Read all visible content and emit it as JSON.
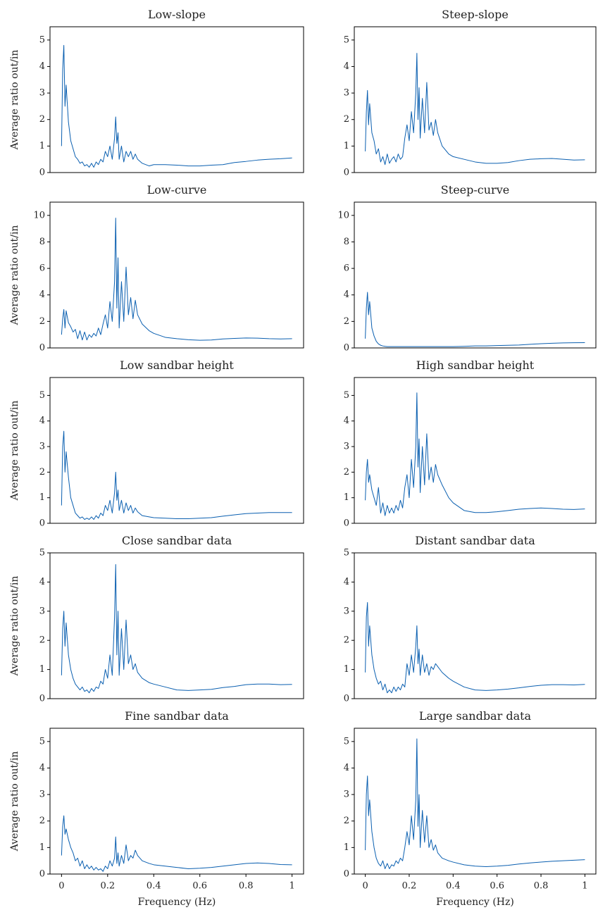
{
  "chart_data": [
    {
      "type": "line",
      "title": "Low-slope",
      "ylabel": "Average ratio out/in",
      "color": "#0a5fb0",
      "x": [
        0,
        0.005,
        0.01,
        0.015,
        0.02,
        0.03,
        0.04,
        0.05,
        0.06,
        0.07,
        0.08,
        0.09,
        0.1,
        0.11,
        0.12,
        0.13,
        0.14,
        0.15,
        0.16,
        0.17,
        0.18,
        0.19,
        0.2,
        0.21,
        0.22,
        0.23,
        0.235,
        0.24,
        0.245,
        0.25,
        0.26,
        0.27,
        0.28,
        0.29,
        0.3,
        0.31,
        0.32,
        0.33,
        0.35,
        0.38,
        0.4,
        0.45,
        0.5,
        0.55,
        0.6,
        0.65,
        0.7,
        0.75,
        0.8,
        0.85,
        0.9,
        0.95,
        1.0
      ],
      "values": [
        1.0,
        3.9,
        4.8,
        2.5,
        3.3,
        1.9,
        1.2,
        0.9,
        0.6,
        0.5,
        0.35,
        0.4,
        0.25,
        0.3,
        0.2,
        0.35,
        0.2,
        0.4,
        0.3,
        0.5,
        0.4,
        0.8,
        0.6,
        1.0,
        0.5,
        1.3,
        2.1,
        1.1,
        1.5,
        0.5,
        1.0,
        0.4,
        0.8,
        0.6,
        0.8,
        0.5,
        0.7,
        0.5,
        0.35,
        0.25,
        0.3,
        0.3,
        0.28,
        0.25,
        0.25,
        0.28,
        0.3,
        0.38,
        0.42,
        0.47,
        0.5,
        0.52,
        0.55
      ],
      "xlim": [
        -0.05,
        1.05
      ],
      "ylim": [
        0,
        5.5
      ],
      "yticks": [
        0,
        1,
        2,
        3,
        4,
        5
      ]
    },
    {
      "type": "line",
      "title": "Steep-slope",
      "color": "#0a5fb0",
      "x": [
        0,
        0.005,
        0.01,
        0.015,
        0.02,
        0.03,
        0.04,
        0.05,
        0.06,
        0.07,
        0.08,
        0.09,
        0.1,
        0.11,
        0.12,
        0.13,
        0.14,
        0.15,
        0.16,
        0.17,
        0.18,
        0.19,
        0.2,
        0.21,
        0.22,
        0.23,
        0.235,
        0.24,
        0.245,
        0.25,
        0.26,
        0.27,
        0.28,
        0.29,
        0.3,
        0.31,
        0.32,
        0.33,
        0.35,
        0.38,
        0.4,
        0.45,
        0.5,
        0.55,
        0.6,
        0.65,
        0.7,
        0.75,
        0.8,
        0.85,
        0.9,
        0.95,
        1.0
      ],
      "values": [
        0.8,
        2.3,
        3.1,
        1.8,
        2.6,
        1.5,
        1.2,
        0.7,
        0.9,
        0.4,
        0.6,
        0.3,
        0.7,
        0.35,
        0.5,
        0.6,
        0.4,
        0.7,
        0.5,
        0.6,
        1.3,
        1.8,
        1.2,
        2.3,
        1.5,
        3.0,
        4.5,
        2.0,
        3.2,
        1.3,
        2.8,
        1.5,
        3.4,
        1.6,
        1.9,
        1.4,
        2.0,
        1.5,
        1.0,
        0.7,
        0.6,
        0.5,
        0.4,
        0.35,
        0.35,
        0.38,
        0.45,
        0.5,
        0.52,
        0.53,
        0.5,
        0.47,
        0.48
      ],
      "xlim": [
        -0.05,
        1.05
      ],
      "ylim": [
        0,
        5.5
      ],
      "yticks": [
        0,
        1,
        2,
        3,
        4,
        5
      ]
    },
    {
      "type": "line",
      "title": "Low-curve",
      "ylabel": "Average ratio out/in",
      "color": "#0a5fb0",
      "x": [
        0,
        0.005,
        0.01,
        0.015,
        0.02,
        0.03,
        0.04,
        0.05,
        0.06,
        0.07,
        0.08,
        0.09,
        0.1,
        0.11,
        0.12,
        0.13,
        0.14,
        0.15,
        0.16,
        0.17,
        0.18,
        0.19,
        0.2,
        0.21,
        0.22,
        0.23,
        0.235,
        0.24,
        0.245,
        0.25,
        0.26,
        0.27,
        0.28,
        0.29,
        0.3,
        0.31,
        0.32,
        0.33,
        0.35,
        0.38,
        0.4,
        0.45,
        0.5,
        0.55,
        0.6,
        0.65,
        0.7,
        0.75,
        0.8,
        0.85,
        0.9,
        0.95,
        1.0
      ],
      "values": [
        1.0,
        2.2,
        2.9,
        1.5,
        2.8,
        1.9,
        1.6,
        1.2,
        1.4,
        0.7,
        1.3,
        0.6,
        1.2,
        0.6,
        1.0,
        0.8,
        1.1,
        0.9,
        1.5,
        1.0,
        1.8,
        2.5,
        1.5,
        3.5,
        2.0,
        5.0,
        9.8,
        3.0,
        6.8,
        1.5,
        5.0,
        2.0,
        6.1,
        2.5,
        3.8,
        2.2,
        3.6,
        2.5,
        1.8,
        1.3,
        1.1,
        0.8,
        0.7,
        0.62,
        0.58,
        0.6,
        0.68,
        0.72,
        0.75,
        0.74,
        0.7,
        0.68,
        0.7
      ],
      "xlim": [
        -0.05,
        1.05
      ],
      "ylim": [
        0,
        11
      ],
      "yticks": [
        0,
        2,
        4,
        6,
        8,
        10
      ]
    },
    {
      "type": "line",
      "title": "Steep-curve",
      "color": "#0a5fb0",
      "x": [
        0,
        0.005,
        0.01,
        0.015,
        0.02,
        0.03,
        0.04,
        0.05,
        0.06,
        0.07,
        0.08,
        0.09,
        0.1,
        0.11,
        0.12,
        0.13,
        0.14,
        0.15,
        0.16,
        0.17,
        0.18,
        0.19,
        0.2,
        0.21,
        0.22,
        0.23,
        0.235,
        0.24,
        0.245,
        0.25,
        0.26,
        0.27,
        0.28,
        0.29,
        0.3,
        0.31,
        0.32,
        0.33,
        0.35,
        0.38,
        0.4,
        0.45,
        0.5,
        0.55,
        0.6,
        0.65,
        0.7,
        0.75,
        0.8,
        0.85,
        0.9,
        0.95,
        1.0
      ],
      "values": [
        0.7,
        3.0,
        4.2,
        2.5,
        3.5,
        1.5,
        0.9,
        0.5,
        0.3,
        0.2,
        0.15,
        0.12,
        0.1,
        0.1,
        0.1,
        0.1,
        0.1,
        0.1,
        0.1,
        0.1,
        0.1,
        0.1,
        0.1,
        0.1,
        0.1,
        0.1,
        0.1,
        0.1,
        0.1,
        0.1,
        0.1,
        0.1,
        0.1,
        0.1,
        0.1,
        0.1,
        0.1,
        0.1,
        0.1,
        0.1,
        0.1,
        0.12,
        0.15,
        0.15,
        0.18,
        0.2,
        0.22,
        0.27,
        0.32,
        0.35,
        0.38,
        0.39,
        0.4
      ],
      "xlim": [
        -0.05,
        1.05
      ],
      "ylim": [
        0,
        11
      ],
      "yticks": [
        0,
        2,
        4,
        6,
        8,
        10
      ]
    },
    {
      "type": "line",
      "title": "Low sandbar height",
      "ylabel": "Average ratio out/in",
      "color": "#0a5fb0",
      "x": [
        0,
        0.005,
        0.01,
        0.015,
        0.02,
        0.03,
        0.04,
        0.05,
        0.06,
        0.07,
        0.08,
        0.09,
        0.1,
        0.11,
        0.12,
        0.13,
        0.14,
        0.15,
        0.16,
        0.17,
        0.18,
        0.19,
        0.2,
        0.21,
        0.22,
        0.23,
        0.235,
        0.24,
        0.245,
        0.25,
        0.26,
        0.27,
        0.28,
        0.29,
        0.3,
        0.31,
        0.32,
        0.33,
        0.35,
        0.38,
        0.4,
        0.45,
        0.5,
        0.55,
        0.6,
        0.65,
        0.7,
        0.75,
        0.8,
        0.85,
        0.9,
        0.95,
        1.0
      ],
      "values": [
        0.7,
        3.0,
        3.6,
        2.0,
        2.8,
        1.8,
        1.0,
        0.7,
        0.4,
        0.3,
        0.2,
        0.25,
        0.15,
        0.2,
        0.15,
        0.25,
        0.15,
        0.3,
        0.2,
        0.4,
        0.3,
        0.7,
        0.5,
        0.9,
        0.4,
        1.2,
        2.0,
        0.9,
        1.3,
        0.5,
        0.9,
        0.4,
        0.8,
        0.5,
        0.7,
        0.4,
        0.6,
        0.45,
        0.3,
        0.25,
        0.22,
        0.2,
        0.18,
        0.18,
        0.2,
        0.22,
        0.28,
        0.33,
        0.38,
        0.4,
        0.42,
        0.42,
        0.42
      ],
      "xlim": [
        -0.05,
        1.05
      ],
      "ylim": [
        0,
        5.7
      ],
      "yticks": [
        0,
        1,
        2,
        3,
        4,
        5
      ]
    },
    {
      "type": "line",
      "title": "High sandbar height",
      "color": "#0a5fb0",
      "x": [
        0,
        0.005,
        0.01,
        0.015,
        0.02,
        0.03,
        0.04,
        0.05,
        0.06,
        0.07,
        0.08,
        0.09,
        0.1,
        0.11,
        0.12,
        0.13,
        0.14,
        0.15,
        0.16,
        0.17,
        0.18,
        0.19,
        0.2,
        0.21,
        0.22,
        0.23,
        0.235,
        0.24,
        0.245,
        0.25,
        0.26,
        0.27,
        0.28,
        0.29,
        0.3,
        0.31,
        0.32,
        0.33,
        0.35,
        0.38,
        0.4,
        0.45,
        0.5,
        0.55,
        0.6,
        0.65,
        0.7,
        0.75,
        0.8,
        0.85,
        0.9,
        0.95,
        1.0
      ],
      "values": [
        0.9,
        2.0,
        2.5,
        1.6,
        1.9,
        1.3,
        1.0,
        0.7,
        1.4,
        0.4,
        0.8,
        0.3,
        0.7,
        0.4,
        0.6,
        0.4,
        0.7,
        0.5,
        0.9,
        0.6,
        1.4,
        1.9,
        1.0,
        2.5,
        1.4,
        3.0,
        5.1,
        2.2,
        3.3,
        1.2,
        3.0,
        1.5,
        3.5,
        1.7,
        2.2,
        1.6,
        2.3,
        1.9,
        1.5,
        1.0,
        0.8,
        0.5,
        0.42,
        0.42,
        0.45,
        0.5,
        0.55,
        0.58,
        0.6,
        0.58,
        0.55,
        0.54,
        0.56
      ],
      "xlim": [
        -0.05,
        1.05
      ],
      "ylim": [
        0,
        5.7
      ],
      "yticks": [
        0,
        1,
        2,
        3,
        4,
        5
      ]
    },
    {
      "type": "line",
      "title": "Close sandbar data",
      "ylabel": "Average ratio out/in",
      "color": "#0a5fb0",
      "x": [
        0,
        0.005,
        0.01,
        0.015,
        0.02,
        0.03,
        0.04,
        0.05,
        0.06,
        0.07,
        0.08,
        0.09,
        0.1,
        0.11,
        0.12,
        0.13,
        0.14,
        0.15,
        0.16,
        0.17,
        0.18,
        0.19,
        0.2,
        0.21,
        0.22,
        0.23,
        0.235,
        0.24,
        0.245,
        0.25,
        0.26,
        0.27,
        0.28,
        0.29,
        0.3,
        0.31,
        0.32,
        0.33,
        0.35,
        0.38,
        0.4,
        0.45,
        0.5,
        0.55,
        0.6,
        0.65,
        0.7,
        0.75,
        0.8,
        0.85,
        0.9,
        0.95,
        1.0
      ],
      "values": [
        0.8,
        2.4,
        3.0,
        1.8,
        2.6,
        1.5,
        1.0,
        0.7,
        0.5,
        0.4,
        0.3,
        0.4,
        0.25,
        0.3,
        0.2,
        0.35,
        0.25,
        0.4,
        0.35,
        0.6,
        0.5,
        1.0,
        0.7,
        1.5,
        0.8,
        2.8,
        4.6,
        1.5,
        3.0,
        0.8,
        2.4,
        1.0,
        2.7,
        1.2,
        1.5,
        1.0,
        1.2,
        0.9,
        0.7,
        0.55,
        0.5,
        0.4,
        0.3,
        0.28,
        0.3,
        0.32,
        0.38,
        0.42,
        0.48,
        0.5,
        0.5,
        0.48,
        0.49
      ],
      "xlim": [
        -0.05,
        1.05
      ],
      "ylim": [
        0,
        5
      ],
      "yticks": [
        0,
        1,
        2,
        3,
        4,
        5
      ]
    },
    {
      "type": "line",
      "title": "Distant sandbar data",
      "color": "#0a5fb0",
      "x": [
        0,
        0.005,
        0.01,
        0.015,
        0.02,
        0.03,
        0.04,
        0.05,
        0.06,
        0.07,
        0.08,
        0.09,
        0.1,
        0.11,
        0.12,
        0.13,
        0.14,
        0.15,
        0.16,
        0.17,
        0.18,
        0.19,
        0.2,
        0.21,
        0.22,
        0.23,
        0.235,
        0.24,
        0.245,
        0.25,
        0.26,
        0.27,
        0.28,
        0.29,
        0.3,
        0.31,
        0.32,
        0.33,
        0.35,
        0.38,
        0.4,
        0.45,
        0.5,
        0.55,
        0.6,
        0.65,
        0.7,
        0.75,
        0.8,
        0.85,
        0.9,
        0.95,
        1.0
      ],
      "values": [
        0.9,
        2.8,
        3.3,
        1.8,
        2.5,
        1.5,
        1.0,
        0.7,
        0.5,
        0.6,
        0.3,
        0.5,
        0.2,
        0.3,
        0.2,
        0.4,
        0.25,
        0.4,
        0.3,
        0.5,
        0.4,
        1.2,
        0.8,
        1.5,
        0.9,
        1.8,
        2.5,
        1.2,
        1.7,
        0.8,
        1.5,
        0.9,
        1.2,
        0.8,
        1.1,
        1.0,
        1.2,
        1.1,
        0.9,
        0.7,
        0.6,
        0.4,
        0.3,
        0.28,
        0.3,
        0.33,
        0.37,
        0.42,
        0.46,
        0.48,
        0.48,
        0.47,
        0.49
      ],
      "xlim": [
        -0.05,
        1.05
      ],
      "ylim": [
        0,
        5
      ],
      "yticks": [
        0,
        1,
        2,
        3,
        4,
        5
      ]
    },
    {
      "type": "line",
      "title": "Fine sandbar data",
      "ylabel": "Average ratio out/in",
      "xlabel": "Frequency (Hz)",
      "color": "#0a5fb0",
      "x": [
        0,
        0.005,
        0.01,
        0.015,
        0.02,
        0.03,
        0.04,
        0.05,
        0.06,
        0.07,
        0.08,
        0.09,
        0.1,
        0.11,
        0.12,
        0.13,
        0.14,
        0.15,
        0.16,
        0.17,
        0.18,
        0.19,
        0.2,
        0.21,
        0.22,
        0.23,
        0.235,
        0.24,
        0.245,
        0.25,
        0.26,
        0.27,
        0.28,
        0.29,
        0.3,
        0.31,
        0.32,
        0.33,
        0.35,
        0.38,
        0.4,
        0.45,
        0.5,
        0.55,
        0.6,
        0.65,
        0.7,
        0.75,
        0.8,
        0.85,
        0.9,
        0.95,
        1.0
      ],
      "values": [
        0.7,
        1.8,
        2.2,
        1.5,
        1.7,
        1.3,
        1.0,
        0.8,
        0.5,
        0.6,
        0.3,
        0.5,
        0.2,
        0.35,
        0.2,
        0.3,
        0.15,
        0.25,
        0.15,
        0.2,
        0.1,
        0.3,
        0.2,
        0.5,
        0.3,
        0.6,
        1.4,
        0.4,
        0.8,
        0.3,
        0.7,
        0.4,
        1.1,
        0.5,
        0.7,
        0.6,
        0.9,
        0.7,
        0.5,
        0.4,
        0.35,
        0.3,
        0.25,
        0.2,
        0.22,
        0.25,
        0.3,
        0.35,
        0.4,
        0.42,
        0.4,
        0.36,
        0.35
      ],
      "xlim": [
        -0.05,
        1.05
      ],
      "xticks": [
        0,
        0.2,
        0.4,
        0.6,
        0.8,
        1
      ],
      "ylim": [
        0,
        5.5
      ],
      "yticks": [
        0,
        1,
        2,
        3,
        4,
        5
      ]
    },
    {
      "type": "line",
      "title": "Large sandbar data",
      "xlabel": "Frequency (Hz)",
      "color": "#0a5fb0",
      "x": [
        0,
        0.005,
        0.01,
        0.015,
        0.02,
        0.03,
        0.04,
        0.05,
        0.06,
        0.07,
        0.08,
        0.09,
        0.1,
        0.11,
        0.12,
        0.13,
        0.14,
        0.15,
        0.16,
        0.17,
        0.18,
        0.19,
        0.2,
        0.21,
        0.22,
        0.23,
        0.235,
        0.24,
        0.245,
        0.25,
        0.26,
        0.27,
        0.28,
        0.29,
        0.3,
        0.31,
        0.32,
        0.33,
        0.35,
        0.38,
        0.4,
        0.45,
        0.5,
        0.55,
        0.6,
        0.65,
        0.7,
        0.75,
        0.8,
        0.85,
        0.9,
        0.95,
        1.0
      ],
      "values": [
        0.9,
        3.0,
        3.7,
        2.2,
        2.8,
        1.6,
        1.0,
        0.6,
        0.4,
        0.3,
        0.5,
        0.2,
        0.4,
        0.2,
        0.35,
        0.3,
        0.5,
        0.4,
        0.6,
        0.5,
        1.0,
        1.6,
        1.1,
        2.2,
        1.3,
        2.8,
        5.1,
        1.8,
        3.0,
        1.0,
        2.4,
        1.2,
        2.2,
        1.0,
        1.3,
        0.9,
        1.1,
        0.8,
        0.6,
        0.5,
        0.45,
        0.35,
        0.3,
        0.28,
        0.3,
        0.33,
        0.38,
        0.42,
        0.45,
        0.48,
        0.5,
        0.52,
        0.54
      ],
      "xlim": [
        -0.05,
        1.05
      ],
      "xticks": [
        0,
        0.2,
        0.4,
        0.6,
        0.8,
        1
      ],
      "ylim": [
        0,
        5.5
      ],
      "yticks": [
        0,
        1,
        2,
        3,
        4,
        5
      ]
    }
  ]
}
